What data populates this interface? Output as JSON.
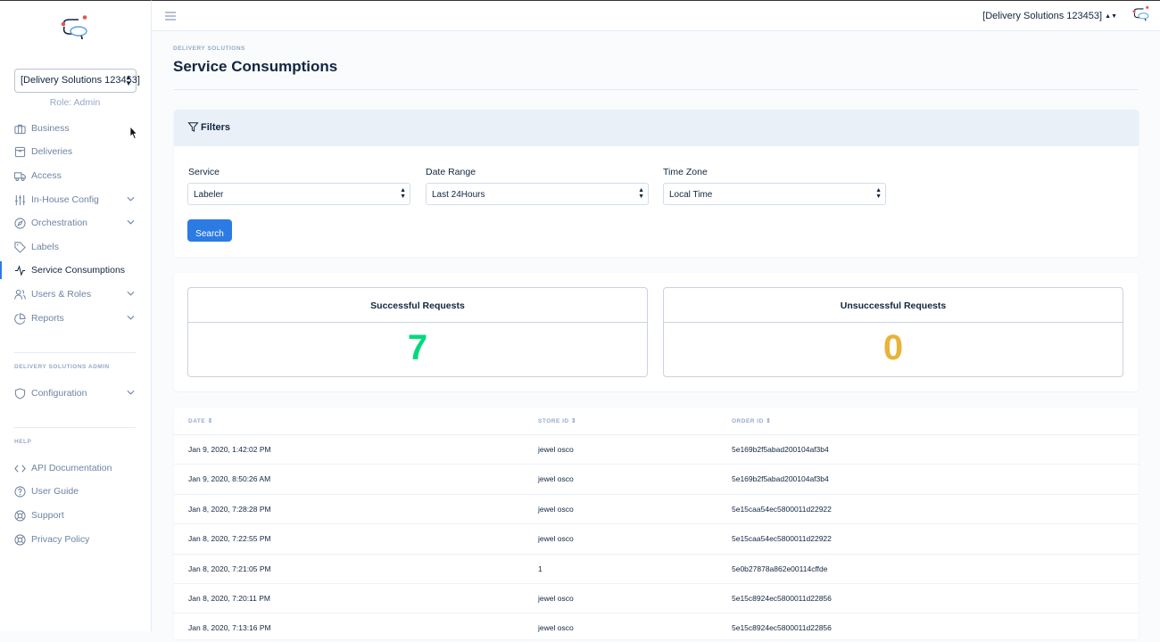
{
  "sidebar": {
    "org_select": "[Delivery Solutions 123453]",
    "role": "Role: Admin",
    "items": [
      {
        "label": "Business",
        "icon": "briefcase-icon"
      },
      {
        "label": "Deliveries",
        "icon": "package-icon"
      },
      {
        "label": "Access",
        "icon": "truck-icon"
      },
      {
        "label": "In-House Config",
        "icon": "sliders-icon"
      },
      {
        "label": "Orchestration",
        "icon": "compass-icon"
      },
      {
        "label": "Labels",
        "icon": "tag-icon"
      },
      {
        "label": "Service Consumptions",
        "icon": "activity-icon"
      },
      {
        "label": "Users & Roles",
        "icon": "users-icon"
      },
      {
        "label": "Reports",
        "icon": "pie-chart-icon"
      }
    ],
    "admin_heading": "DELIVERY SOLUTIONS ADMIN",
    "admin_items": [
      {
        "label": "Configuration",
        "icon": "shield-icon"
      }
    ],
    "help_heading": "HELP",
    "help_items": [
      {
        "label": "API Documentation",
        "icon": "code-icon"
      },
      {
        "label": "User Guide",
        "icon": "help-circle-icon"
      },
      {
        "label": "Support",
        "icon": "life-buoy-icon"
      },
      {
        "label": "Privacy Policy",
        "icon": "life-buoy-icon"
      }
    ]
  },
  "topbar": {
    "org": "[Delivery Solutions 123453]"
  },
  "header": {
    "pretitle": "DELIVERY SOLUTIONS",
    "title": "Service Consumptions"
  },
  "filters": {
    "title": "Filters",
    "service_label": "Service",
    "service_value": "Labeler",
    "date_label": "Date Range",
    "date_value": "Last 24Hours",
    "tz_label": "Time Zone",
    "tz_value": "Local Time",
    "search_label": "Search"
  },
  "stats": {
    "success_label": "Successful Requests",
    "success_value": "7",
    "fail_label": "Unsuccessful Requests",
    "fail_value": "0",
    "success_color": "#00d97e",
    "fail_color": "#e8b339"
  },
  "table": {
    "headers": [
      "DATE",
      "STORE ID",
      "ORDER ID"
    ],
    "rows": [
      [
        "Jan 9, 2020, 1:42:02 PM",
        "jewel osco",
        "5e169b2f5abad200104af3b4"
      ],
      [
        "Jan 9, 2020, 8:50:26 AM",
        "jewel osco",
        "5e169b2f5abad200104af3b4"
      ],
      [
        "Jan 8, 2020, 7:28:28 PM",
        "jewel osco",
        "5e15caa54ec5800011d22922"
      ],
      [
        "Jan 8, 2020, 7:22:55 PM",
        "jewel osco",
        "5e15caa54ec5800011d22922"
      ],
      [
        "Jan 8, 2020, 7:21:05 PM",
        "1",
        "5e0b27878a862e00114cffde"
      ],
      [
        "Jan 8, 2020, 7:20:11 PM",
        "jewel osco",
        "5e15c8924ec5800011d22856"
      ],
      [
        "Jan 8, 2020, 7:13:16 PM",
        "jewel osco",
        "5e15c8924ec5800011d22856"
      ]
    ]
  }
}
